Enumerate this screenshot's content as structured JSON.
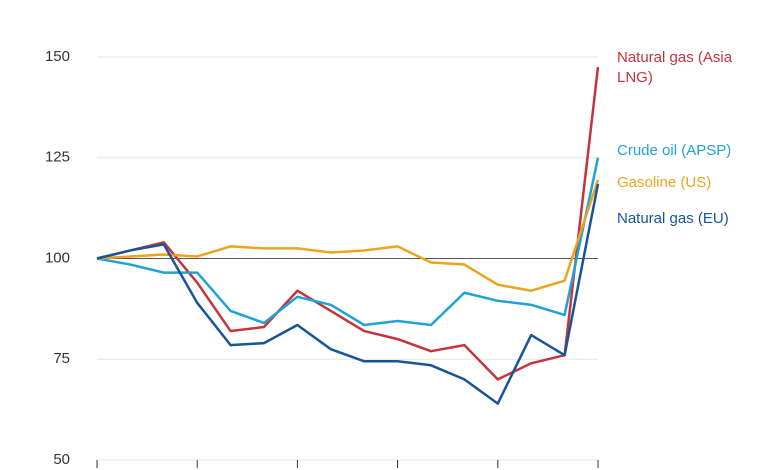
{
  "chart_data": {
    "type": "line",
    "categories": [
      null,
      null,
      null,
      null,
      null,
      null,
      null,
      null,
      null,
      null,
      null,
      null,
      null,
      null,
      null,
      null
    ],
    "series": [
      {
        "name": "Natural gas (Asia LNG)",
        "color": "#c8323f",
        "values": [
          100,
          102,
          104,
          94,
          82,
          83,
          92,
          87,
          82,
          80,
          77,
          78.5,
          70,
          74,
          76,
          147.5
        ]
      },
      {
        "name": "Crude oil (APSP)",
        "color": "#1fa2d6",
        "values": [
          100,
          98.5,
          96.5,
          96.5,
          87,
          84,
          90.5,
          88.5,
          83.5,
          84.5,
          83.5,
          91.5,
          89.5,
          88.5,
          86,
          125
        ]
      },
      {
        "name": "Gasoline (US)",
        "color": "#eba41e",
        "values": [
          100,
          100.5,
          101,
          100.5,
          103,
          102.5,
          102.5,
          101.5,
          102,
          103,
          99,
          98.5,
          93.5,
          92,
          94.5,
          119.5
        ]
      },
      {
        "name": "Natural gas (EU)",
        "color": "#17559b",
        "values": [
          100,
          102,
          103.5,
          89,
          78.5,
          79,
          83.5,
          77.5,
          74.5,
          74.5,
          73.5,
          70,
          64,
          81,
          76,
          118.5
        ]
      }
    ],
    "ylim": [
      50,
      150
    ],
    "yticks": [
      50,
      75,
      100,
      125,
      150
    ],
    "grid": true,
    "hline": 100
  }
}
